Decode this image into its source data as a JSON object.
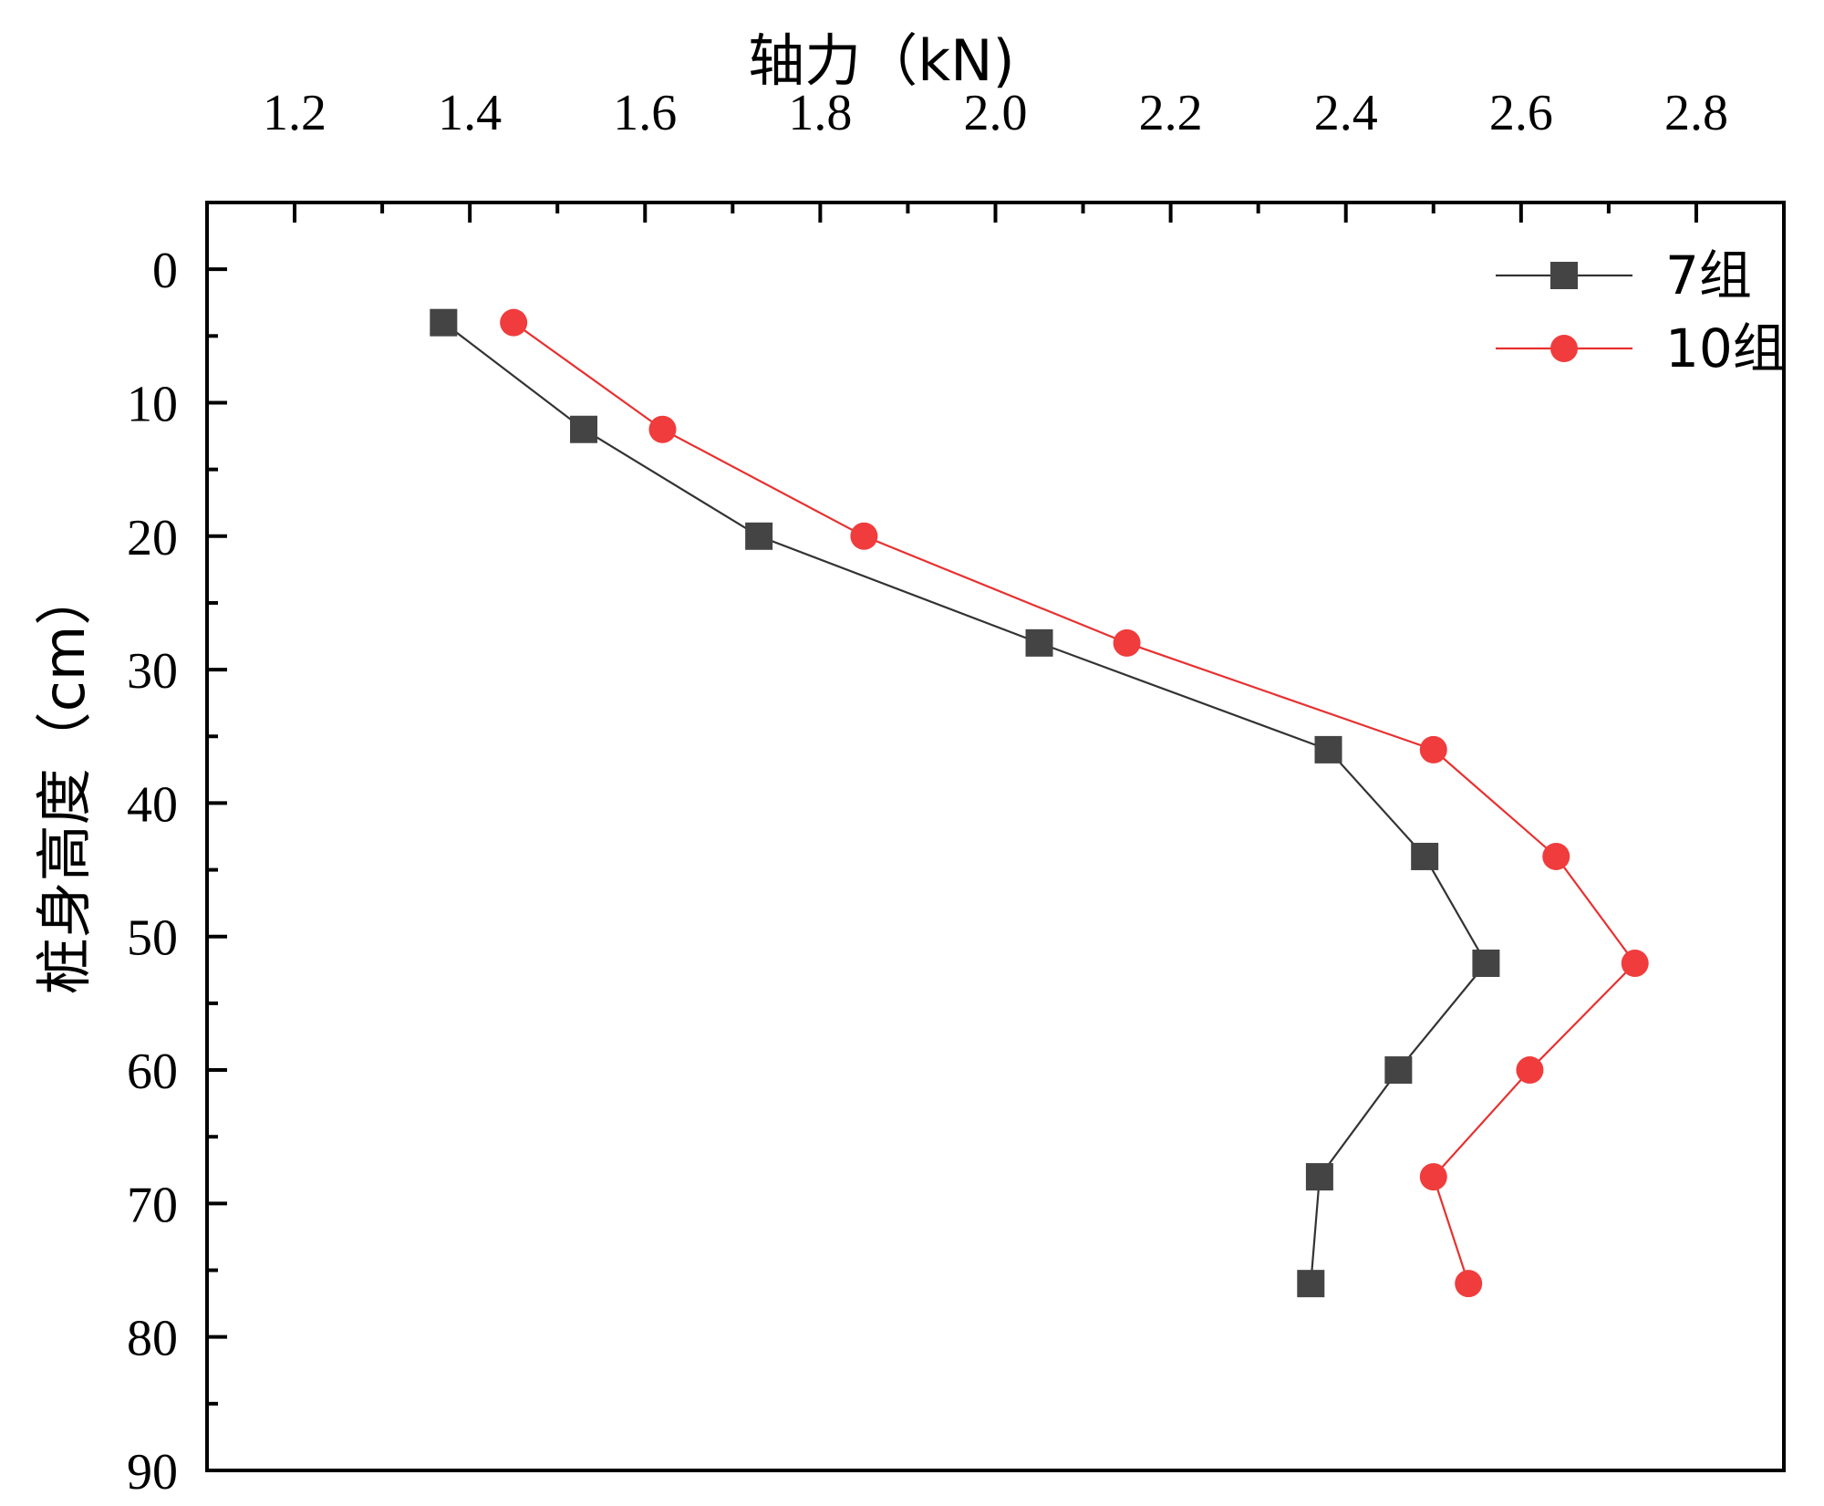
{
  "chart_data": {
    "type": "line",
    "title": "",
    "xlabel": "轴力（kN)",
    "ylabel": "桩身高度（cm）",
    "xlim": [
      1.1,
      2.9
    ],
    "ylim": [
      -5,
      90
    ],
    "y_inverted": true,
    "x_axis_position": "top",
    "xticks": [
      1.2,
      1.4,
      1.6,
      1.8,
      2.0,
      2.2,
      2.4,
      2.6,
      2.8
    ],
    "xtick_labels": [
      "1.2",
      "1.4",
      "1.6",
      "1.8",
      "2.0",
      "2.2",
      "2.4",
      "2.6",
      "2.8"
    ],
    "yticks": [
      0,
      10,
      20,
      30,
      40,
      50,
      60,
      70,
      80,
      90
    ],
    "ytick_labels": [
      "0",
      "10",
      "20",
      "30",
      "40",
      "50",
      "60",
      "70",
      "80",
      "90"
    ],
    "grid": false,
    "legend_position": "top-right",
    "series": [
      {
        "name": "7组",
        "marker": "square",
        "color": "#444444",
        "line_color": "#333333",
        "points": [
          {
            "x": 1.37,
            "y": 4
          },
          {
            "x": 1.53,
            "y": 12
          },
          {
            "x": 1.73,
            "y": 20
          },
          {
            "x": 2.05,
            "y": 28
          },
          {
            "x": 2.38,
            "y": 36
          },
          {
            "x": 2.49,
            "y": 44
          },
          {
            "x": 2.56,
            "y": 52
          },
          {
            "x": 2.46,
            "y": 60
          },
          {
            "x": 2.37,
            "y": 68
          },
          {
            "x": 2.36,
            "y": 76
          }
        ]
      },
      {
        "name": "10组",
        "marker": "circle",
        "color": "#f03c3c",
        "line_color": "#e83030",
        "points": [
          {
            "x": 1.45,
            "y": 4
          },
          {
            "x": 1.62,
            "y": 12
          },
          {
            "x": 1.85,
            "y": 20
          },
          {
            "x": 2.15,
            "y": 28
          },
          {
            "x": 2.5,
            "y": 36
          },
          {
            "x": 2.64,
            "y": 44
          },
          {
            "x": 2.73,
            "y": 52
          },
          {
            "x": 2.61,
            "y": 60
          },
          {
            "x": 2.5,
            "y": 68
          },
          {
            "x": 2.54,
            "y": 76
          }
        ]
      }
    ]
  }
}
